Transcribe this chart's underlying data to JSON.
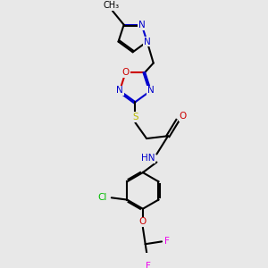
{
  "bg_color": "#e8e8e8",
  "colors": {
    "N": "#0000cc",
    "O": "#cc0000",
    "S": "#bbbb00",
    "Cl": "#00bb00",
    "F": "#ee00ee",
    "C": "#000000"
  },
  "lw": 1.5,
  "fs": 7.5
}
